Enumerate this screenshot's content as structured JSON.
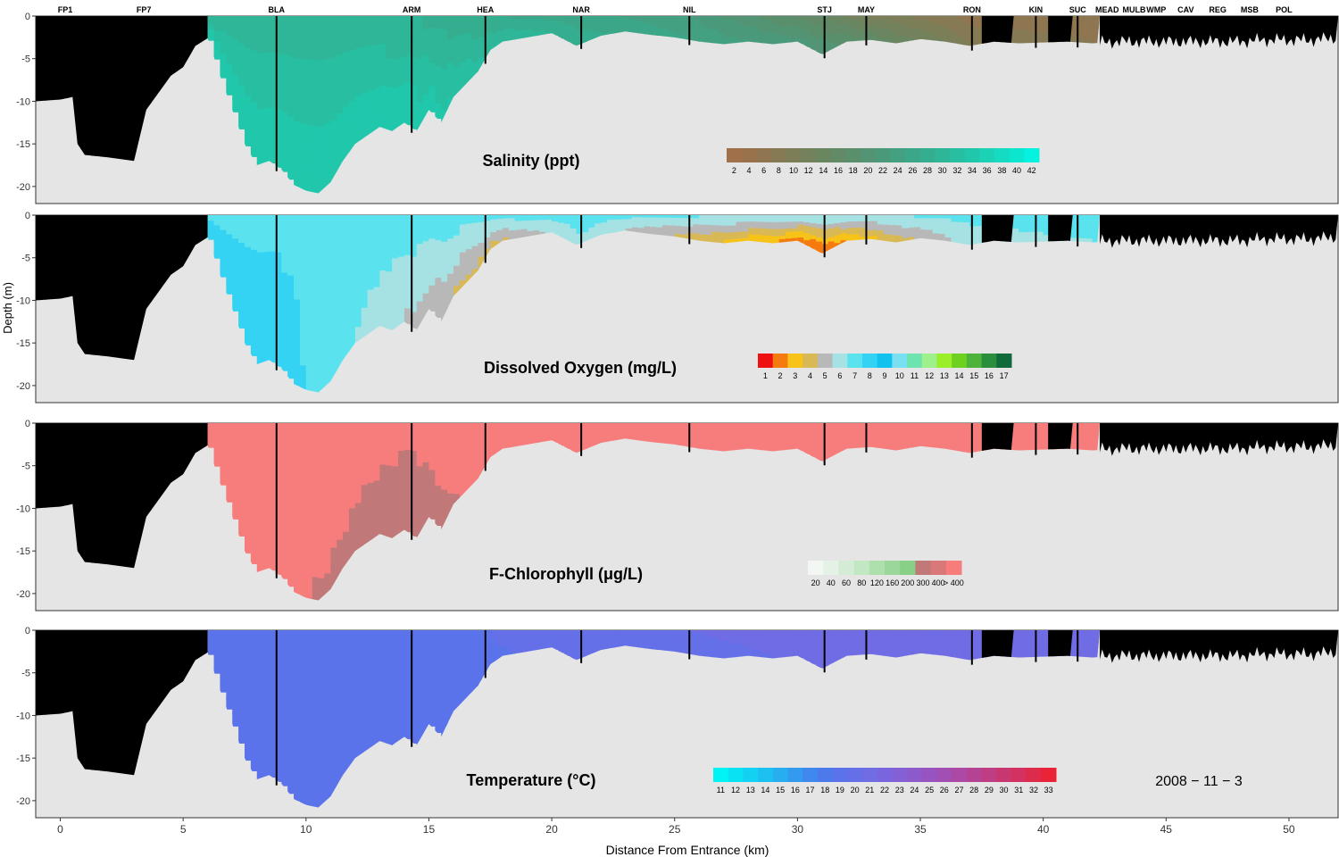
{
  "chart_data": {
    "type": "heatmap",
    "description_free": true,
    "date_label": "2008 − 11 − 3",
    "xlabel": "Distance From Entrance (km)",
    "ylabel": "Depth (m)",
    "xlim": [
      -1,
      52
    ],
    "x_ticks": [
      0,
      5,
      10,
      15,
      20,
      25,
      30,
      35,
      40,
      45,
      50
    ],
    "ylim": [
      -22,
      0
    ],
    "y_ticks": [
      0,
      -5,
      -10,
      -15,
      -20
    ],
    "stations": [
      {
        "name": "FP1",
        "km": 0.2
      },
      {
        "name": "FP7",
        "km": 3.4
      },
      {
        "name": "BLA",
        "km": 8.8
      },
      {
        "name": "ARM",
        "km": 14.3
      },
      {
        "name": "HEA",
        "km": 17.3
      },
      {
        "name": "NAR",
        "km": 21.2
      },
      {
        "name": "NIL",
        "km": 25.6
      },
      {
        "name": "STJ",
        "km": 31.1
      },
      {
        "name": "MAY",
        "km": 32.8
      },
      {
        "name": "RON",
        "km": 37.1
      },
      {
        "name": "KIN",
        "km": 39.7
      },
      {
        "name": "SUC",
        "km": 41.4
      },
      {
        "name": "MEAD",
        "km": 42.6
      },
      {
        "name": "MULB",
        "km": 43.7
      },
      {
        "name": "WMP",
        "km": 44.6
      },
      {
        "name": "CAV",
        "km": 45.8
      },
      {
        "name": "REG",
        "km": 47.1
      },
      {
        "name": "MSB",
        "km": 48.4
      },
      {
        "name": "POL",
        "km": 49.8
      }
    ],
    "bathymetry": {
      "x": [
        -1,
        0,
        0.5,
        0.7,
        1,
        2,
        3,
        3.5,
        4,
        4.5,
        5,
        5.5,
        6,
        6.5,
        7,
        7.5,
        8,
        8.5,
        9,
        9.5,
        10,
        10.5,
        11,
        11.5,
        12,
        12.5,
        13,
        13.5,
        14,
        14.5,
        15,
        15.5,
        16,
        16.5,
        17,
        17.5,
        18,
        19,
        20,
        21,
        22,
        23,
        24,
        25,
        26,
        27,
        28,
        29,
        30,
        31,
        32,
        33,
        34,
        35,
        36,
        37,
        38,
        39,
        40,
        41,
        42,
        43,
        44,
        45,
        46,
        47,
        48,
        49,
        50,
        51,
        52
      ],
      "y": [
        -10,
        -9.8,
        -9.5,
        -15,
        -16.3,
        -16.6,
        -17,
        -11,
        -9,
        -7,
        -6,
        -3.5,
        -2.6,
        -7,
        -11,
        -15,
        -17.5,
        -17,
        -18,
        -19.8,
        -20.5,
        -20.8,
        -19.5,
        -17,
        -15,
        -14,
        -13,
        -13.5,
        -12.5,
        -13.5,
        -11,
        -12.5,
        -9.5,
        -8,
        -6.5,
        -4,
        -3,
        -2.5,
        -2,
        -3.5,
        -2.3,
        -1.8,
        -2.2,
        -2.5,
        -3,
        -3.3,
        -3,
        -3.3,
        -3,
        -4.5,
        -3,
        -2.8,
        -3.2,
        -2.7,
        -3,
        -3.5,
        -3,
        -3.2,
        -3.1,
        -3,
        -3.2,
        -3,
        -3,
        -3,
        -3,
        -3,
        -3,
        -2.8,
        -2.8,
        -2.8,
        -2.5
      ]
    },
    "data_extent_km": [
      6.0,
      42.3
    ],
    "panels": [
      {
        "title": "Salinity (ppt)",
        "variable": "salinity",
        "legend_labels": [
          "2",
          "4",
          "6",
          "8",
          "10",
          "12",
          "14",
          "16",
          "18",
          "20",
          "22",
          "24",
          "26",
          "28",
          "30",
          "32",
          "34",
          "36",
          "38",
          "40",
          "42"
        ],
        "legend_colors": [
          "#a0704a",
          "#99724c",
          "#8f7650",
          "#857a54",
          "#7c7e58",
          "#73825c",
          "#6a8660",
          "#628a66",
          "#5a8f6c",
          "#529473",
          "#4a997a",
          "#43a081",
          "#3ca788",
          "#35ae90",
          "#2fb698",
          "#28bea1",
          "#21c7ab",
          "#1bd1b6",
          "#14dbc2",
          "#0de6cf",
          "#06f2e0"
        ],
        "stations": [
          {
            "km": 6.0,
            "surface": 30,
            "bottom": 36
          },
          {
            "km": 8.8,
            "surface": 31,
            "bottom": 36
          },
          {
            "km": 14.3,
            "surface": 30,
            "bottom": 36
          },
          {
            "km": 17.3,
            "surface": 28,
            "bottom": 33
          },
          {
            "km": 21.2,
            "surface": 27,
            "bottom": 29
          },
          {
            "km": 25.6,
            "surface": 24,
            "bottom": 26
          },
          {
            "km": 31.1,
            "surface": 16,
            "bottom": 22
          },
          {
            "km": 32.8,
            "surface": 12,
            "bottom": 18
          },
          {
            "km": 37.1,
            "surface": 7,
            "bottom": 10
          },
          {
            "km": 42.3,
            "surface": 6,
            "bottom": 8
          }
        ]
      },
      {
        "title": "Dissolved Oxygen (mg/L)",
        "variable": "dissolved_oxygen",
        "legend_labels": [
          "1",
          "2",
          "3",
          "4",
          "5",
          "6",
          "7",
          "8",
          "9",
          "10",
          "11",
          "12",
          "13",
          "14",
          "15",
          "16",
          "17"
        ],
        "legend_colors": [
          "#ee1111",
          "#f57a10",
          "#f7c318",
          "#d9b955",
          "#b8b8b8",
          "#a6e2e3",
          "#5ae3ee",
          "#34d3f3",
          "#12c1ee",
          "#78e0f0",
          "#6de3b0",
          "#9ef08a",
          "#9aef2a",
          "#6fd11f",
          "#4fb23a",
          "#2a8f3c",
          "#106a3b"
        ],
        "stations": [
          {
            "km": 6.0,
            "surface": 7.8,
            "bottom": 8.8
          },
          {
            "km": 8.8,
            "surface": 7.8,
            "bottom": 8.6
          },
          {
            "km": 14.3,
            "surface": 7.6,
            "bottom": 5.8
          },
          {
            "km": 17.3,
            "surface": 7.5,
            "bottom": 4.2
          },
          {
            "km": 21.2,
            "surface": 7.4,
            "bottom": 6.8
          },
          {
            "km": 25.6,
            "surface": 7.2,
            "bottom": 4.5
          },
          {
            "km": 31.1,
            "surface": 7.0,
            "bottom": 1.8
          },
          {
            "km": 32.8,
            "surface": 7.0,
            "bottom": 3.5
          },
          {
            "km": 37.1,
            "surface": 7.3,
            "bottom": 6.5
          },
          {
            "km": 42.3,
            "surface": 7.6,
            "bottom": 7.0
          }
        ]
      },
      {
        "title": "F-Chlorophyll (μg/L)",
        "variable": "chlorophyll",
        "legend_labels": [
          "20",
          "40",
          "60",
          "80",
          "120",
          "160",
          "200",
          "300",
          "400",
          "> 400"
        ],
        "legend_colors": [
          "#f2f7f4",
          "#e4f1e6",
          "#d4ecd6",
          "#c2e7c3",
          "#aee0ae",
          "#9bd79a",
          "#88cf88",
          "#c07878",
          "#d97878",
          "#f77d7d"
        ],
        "stations": [
          {
            "km": 6.0,
            "surface": 500,
            "bottom": 500
          },
          {
            "km": 8.8,
            "surface": 500,
            "bottom": 420
          },
          {
            "km": 14.3,
            "surface": 420,
            "bottom": 330
          },
          {
            "km": 17.3,
            "surface": 500,
            "bottom": 430
          },
          {
            "km": 21.2,
            "surface": 500,
            "bottom": 500
          },
          {
            "km": 25.6,
            "surface": 500,
            "bottom": 500
          },
          {
            "km": 31.1,
            "surface": 500,
            "bottom": 500
          },
          {
            "km": 37.1,
            "surface": 500,
            "bottom": 500
          },
          {
            "km": 42.3,
            "surface": 500,
            "bottom": 500
          }
        ]
      },
      {
        "title": "Temperature (°C)",
        "variable": "temperature",
        "legend_labels": [
          "11",
          "12",
          "13",
          "14",
          "15",
          "16",
          "17",
          "18",
          "19",
          "20",
          "21",
          "22",
          "23",
          "24",
          "25",
          "26",
          "27",
          "28",
          "29",
          "30",
          "31",
          "32",
          "33"
        ],
        "legend_colors": [
          "#00f4f4",
          "#08e2f3",
          "#12d1f2",
          "#1cc0f1",
          "#27aef0",
          "#339bef",
          "#3f88ee",
          "#4c7aec",
          "#5a73ea",
          "#6570e8",
          "#6f6ce4",
          "#7966de",
          "#8360d6",
          "#8d5acc",
          "#9754c0",
          "#a14fb3",
          "#ab49a4",
          "#b54394",
          "#bf3d83",
          "#c93771",
          "#d3315f",
          "#dd2b4c",
          "#e92437"
        ],
        "stations": [
          {
            "km": 6.0,
            "surface": 19.5,
            "bottom": 19.4
          },
          {
            "km": 8.8,
            "surface": 19.5,
            "bottom": 19.4
          },
          {
            "km": 14.3,
            "surface": 19.6,
            "bottom": 19.4
          },
          {
            "km": 17.3,
            "surface": 20.0,
            "bottom": 19.8
          },
          {
            "km": 21.2,
            "surface": 20.6,
            "bottom": 20.4
          },
          {
            "km": 25.6,
            "surface": 21.0,
            "bottom": 20.8
          },
          {
            "km": 31.1,
            "surface": 21.3,
            "bottom": 21.1
          },
          {
            "km": 37.1,
            "surface": 21.8,
            "bottom": 21.2
          },
          {
            "km": 42.3,
            "surface": 21.5,
            "bottom": 21.3
          }
        ]
      }
    ]
  }
}
